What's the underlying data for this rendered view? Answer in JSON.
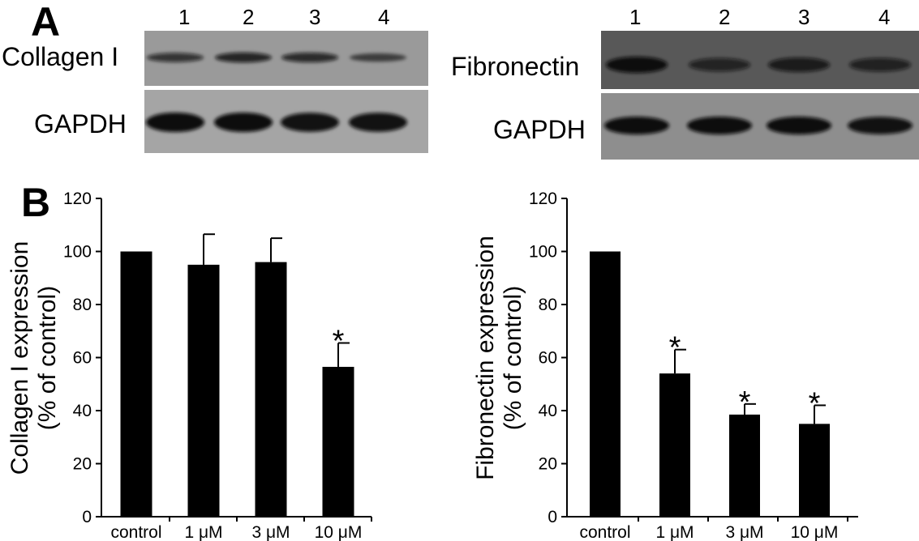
{
  "panel_a": {
    "letter": "A",
    "left": {
      "lanes": [
        "1",
        "2",
        "3",
        "4"
      ],
      "top_label": "Collagen I",
      "bottom_label": "GAPDH",
      "top_band_intensity": [
        0.6,
        0.75,
        0.7,
        0.4
      ],
      "bottom_band_intensity": [
        1.0,
        1.0,
        0.95,
        0.95
      ]
    },
    "right": {
      "lanes": [
        "1",
        "2",
        "3",
        "4"
      ],
      "top_label": "Fibronectin",
      "bottom_label": "GAPDH",
      "top_band_intensity": [
        1.0,
        0.6,
        0.75,
        0.65
      ],
      "bottom_band_intensity": [
        1.0,
        1.0,
        1.0,
        0.95
      ]
    }
  },
  "panel_b": {
    "letter": "B"
  },
  "chart_data": [
    {
      "type": "bar",
      "categories": [
        "control",
        "1 μM",
        "3 μM",
        "10 μM"
      ],
      "values": [
        100,
        95,
        96,
        56.5
      ],
      "error": [
        0,
        11.5,
        9,
        9
      ],
      "significant": [
        false,
        false,
        false,
        true
      ],
      "significance_marker": "*",
      "ylabel_line1": "Collagen I expression",
      "ylabel_line2": "(% of control)",
      "ylim": [
        0,
        120
      ],
      "yticks": [
        "0",
        "20",
        "40",
        "60",
        "80",
        "100",
        "120"
      ],
      "bar_color": "#000000",
      "marker_color": "#444444"
    },
    {
      "type": "bar",
      "categories": [
        "control",
        "1 μM",
        "3 μM",
        "10 μM"
      ],
      "values": [
        100,
        54,
        38.5,
        35
      ],
      "error": [
        0,
        9,
        4,
        7
      ],
      "significant": [
        false,
        true,
        true,
        true
      ],
      "significance_marker": "*",
      "ylabel_line1": "Fibronectin expression",
      "ylabel_line2": "(% of control)",
      "ylim": [
        0,
        120
      ],
      "yticks": [
        "0",
        "20",
        "40",
        "60",
        "80",
        "100",
        "120"
      ],
      "bar_color": "#000000",
      "marker_color": "#444444"
    }
  ]
}
